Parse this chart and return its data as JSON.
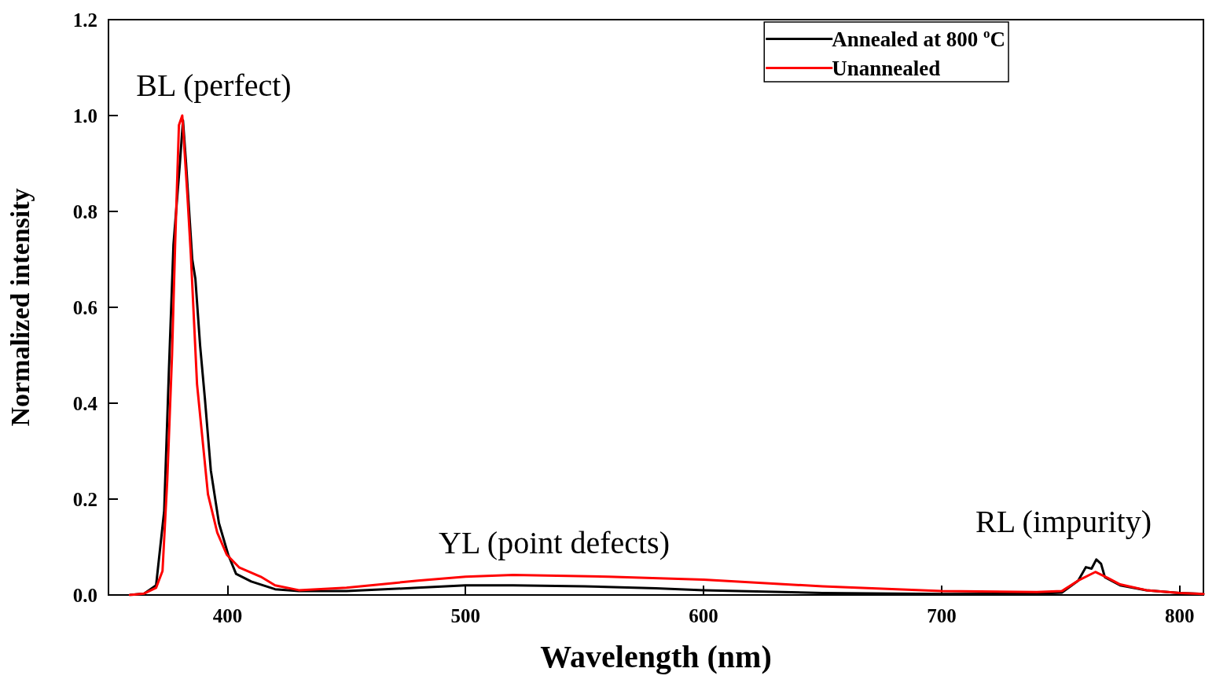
{
  "chart_data": {
    "type": "line",
    "xlabel": "Wavelength (nm)",
    "ylabel": "Normalized intensity",
    "xlim": [
      350,
      810
    ],
    "xticks": [
      400,
      500,
      600,
      700,
      800
    ],
    "ylim": [
      0,
      1.2
    ],
    "yticks": [
      {
        "value": 0,
        "label": "0.0"
      },
      0.2,
      0.4,
      0.6,
      0.8,
      {
        "value": 1,
        "label": "1.0"
      },
      1.2
    ],
    "grid": false,
    "legend": "top right",
    "marker": "none",
    "line_style": "solid",
    "annotations": [
      "BL (perfect)",
      "YL (point defects)",
      "RL (impurity)"
    ],
    "series": [
      {
        "name": "Annealed at 800 $^{o}$C",
        "color": "#000000",
        "x": [
          359,
          365,
          370,
          373.4,
          375.4,
          377.3,
          380,
          381.3,
          382.6,
          385.2,
          386.5,
          388.5,
          390.5,
          393,
          396.4,
          400.3,
          403.6,
          410,
          420,
          430,
          450,
          480,
          500,
          520,
          550,
          580,
          600,
          650,
          700,
          740,
          750.5,
          757.4,
          760.6,
          763,
          765,
          767,
          768.6,
          775,
          786,
          800,
          810
        ],
        "values": [
          0,
          0.003,
          0.02,
          0.175,
          0.47,
          0.73,
          0.9,
          0.99,
          0.9,
          0.7,
          0.66,
          0.52,
          0.41,
          0.26,
          0.15,
          0.084,
          0.044,
          0.028,
          0.012,
          0.008,
          0.008,
          0.015,
          0.02,
          0.02,
          0.018,
          0.014,
          0.01,
          0.004,
          0.002,
          0.003,
          0.005,
          0.03,
          0.058,
          0.055,
          0.074,
          0.065,
          0.037,
          0.02,
          0.01,
          0.004,
          0.002
        ]
      },
      {
        "name": "Unannealed",
        "color": "#ff0000",
        "x": [
          359,
          365,
          370,
          372.7,
          374.7,
          376.7,
          378,
          379.6,
          381,
          383.2,
          384.6,
          387.2,
          389.2,
          391.8,
          395.7,
          399.7,
          405,
          414,
          420,
          430,
          450,
          480,
          500,
          520,
          560,
          600,
          650,
          700,
          740,
          750.5,
          757.4,
          764.6,
          770,
          775,
          786,
          800,
          810
        ],
        "values": [
          0,
          0.003,
          0.015,
          0.05,
          0.24,
          0.5,
          0.73,
          0.98,
          1.0,
          0.83,
          0.71,
          0.44,
          0.34,
          0.21,
          0.13,
          0.084,
          0.057,
          0.038,
          0.02,
          0.01,
          0.015,
          0.03,
          0.038,
          0.042,
          0.038,
          0.032,
          0.018,
          0.008,
          0.006,
          0.008,
          0.03,
          0.048,
          0.035,
          0.022,
          0.01,
          0.004,
          0.002
        ]
      }
    ]
  }
}
